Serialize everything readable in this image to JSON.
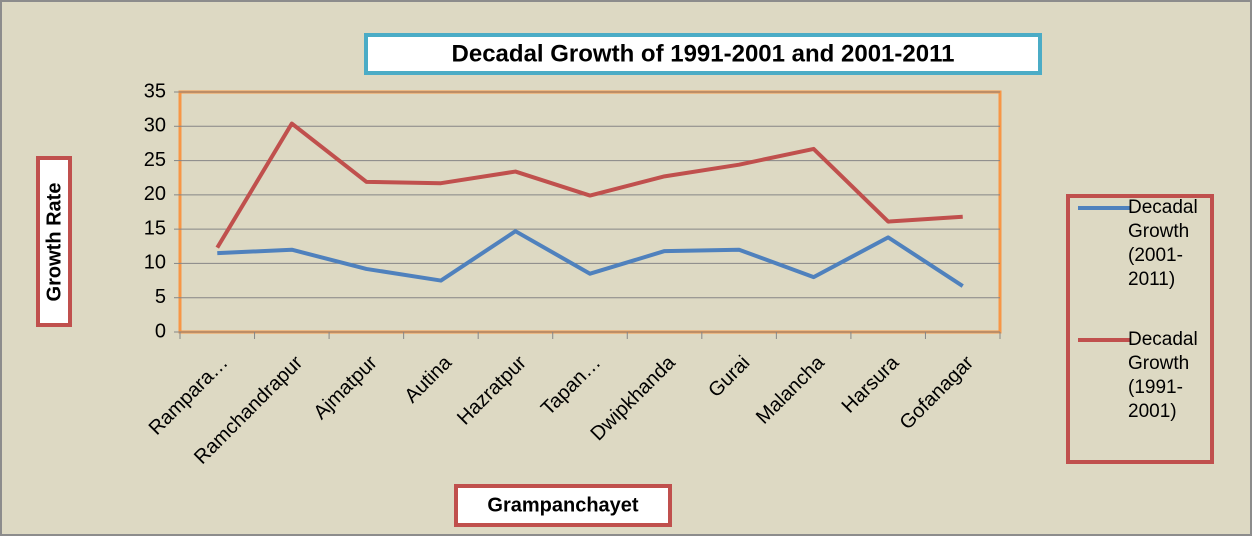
{
  "chart_data": {
    "type": "line",
    "title": "Decadal Growth of 1991-2001 and 2001-2011",
    "x_label": "Grampanchayet",
    "y_label": "Growth Rate",
    "categories": [
      "Rampara…",
      "Ramchandrapur",
      "Ajmatpur",
      "Autina",
      "Hazratpur",
      "Tapan…",
      "Dwipkhanda",
      "Gurai",
      "Malancha",
      "Harsura",
      "Gofanagar"
    ],
    "series": [
      {
        "name": "Decadal Growth (2001-2011)",
        "color": "#4f81bd",
        "values": [
          11.5,
          12,
          9.2,
          7.5,
          14.7,
          8.5,
          11.8,
          12,
          8,
          13.8,
          6.7
        ]
      },
      {
        "name": "Decadal Growth (1991-2001)",
        "color": "#c0504d",
        "values": [
          12.3,
          30.4,
          21.9,
          21.7,
          23.4,
          19.9,
          22.7,
          24.4,
          26.7,
          16.1,
          16.8
        ]
      }
    ],
    "ylim": [
      0,
      35
    ],
    "yticks": [
      0,
      5,
      10,
      15,
      20,
      25,
      30,
      35
    ],
    "grid": true,
    "legend": "right"
  }
}
